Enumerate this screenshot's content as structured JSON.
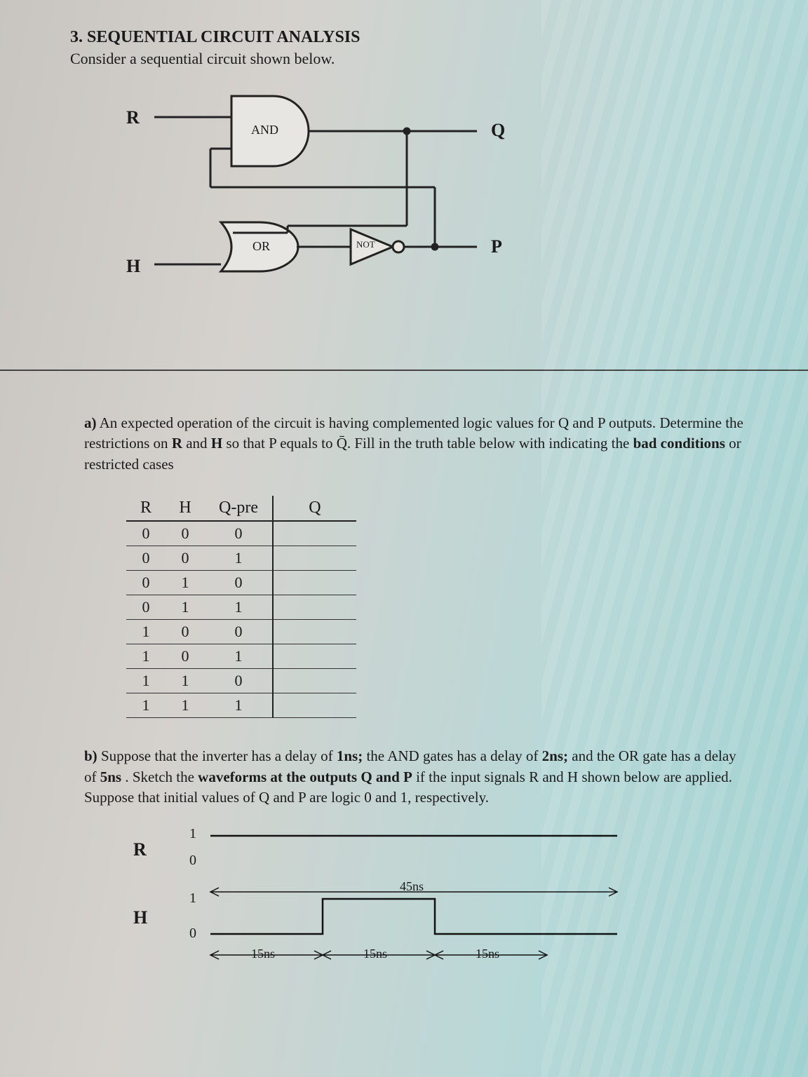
{
  "problem_number": "3.",
  "title": "SEQUENTIAL CIRCUIT ANALYSIS",
  "subtitle": "Consider a sequential circuit shown below.",
  "circuit": {
    "inputs": {
      "R": "R",
      "H": "H"
    },
    "outputs": {
      "Q": "Q",
      "P": "P"
    },
    "gates": {
      "and": "AND",
      "or": "OR",
      "not": "NOT"
    },
    "line_color": "#222222",
    "line_width": 3
  },
  "part_a": {
    "label": "a)",
    "text_1": "An expected operation of the circuit is having complemented logic values for Q and P outputs. Determine the restrictions on ",
    "bold_1": "R",
    "text_2": " and ",
    "bold_2": "H",
    "text_3": " so that P equals to Q̄. Fill in the truth table below with indicating the ",
    "bold_3": "bad conditions",
    "text_4": " or restricted cases"
  },
  "table": {
    "headers": [
      "R",
      "H",
      "Q-pre",
      "Q"
    ],
    "rows": [
      [
        "0",
        "0",
        "0",
        ""
      ],
      [
        "0",
        "0",
        "1",
        ""
      ],
      [
        "0",
        "1",
        "0",
        ""
      ],
      [
        "0",
        "1",
        "1",
        ""
      ],
      [
        "1",
        "0",
        "0",
        ""
      ],
      [
        "1",
        "0",
        "1",
        ""
      ],
      [
        "1",
        "1",
        "0",
        ""
      ],
      [
        "1",
        "1",
        "1",
        ""
      ]
    ]
  },
  "part_b": {
    "label": "b)",
    "text_1": "Suppose that the inverter has a delay of ",
    "bold_1": "1ns;",
    "text_2": " the AND gates has a delay of  ",
    "bold_2": "2ns;",
    "text_3": " and the OR gate has a delay of ",
    "bold_3": "5ns",
    "text_4": " . Sketch the ",
    "bold_4": "waveforms at the outputs Q and P",
    "text_5": " if the input signals R and H shown below are applied. Suppose that initial values of Q and P are logic 0 and 1, respectively."
  },
  "waveforms": {
    "R": {
      "label": "R",
      "hi": "1",
      "lo": "0"
    },
    "H": {
      "label": "H",
      "hi": "1",
      "lo": "0"
    },
    "timings": {
      "t45": "45ns",
      "t15a": "15ns",
      "t15b": "15ns",
      "t15c": "15ns"
    },
    "line_color": "#111111",
    "line_width": 2.5
  }
}
